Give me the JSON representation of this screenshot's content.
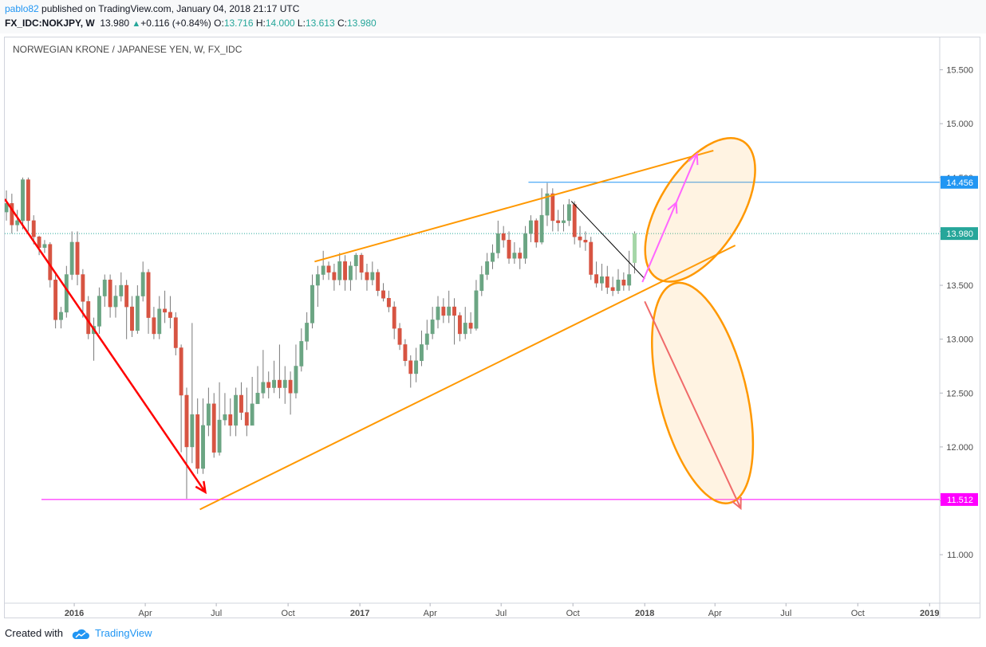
{
  "header": {
    "author": "pablo82",
    "published_text": " published on TradingView.com, January 04, 2018 21:17 UTC",
    "symbol": "FX_IDC:NOKJPY, W",
    "last": "13.980",
    "change": "+0.116 (+0.84%)",
    "o_label": "O:",
    "o_value": "13.716",
    "h_label": "H:",
    "h_value": "14.000",
    "l_label": "L:",
    "l_value": "13.613",
    "c_label": "C:",
    "c_value": "13.980"
  },
  "footer": {
    "created_with": "Created with",
    "brand": "TradingView"
  },
  "colors": {
    "up": "#26a69a",
    "down": "#ef5350",
    "wedge": "#ff9800",
    "arrow_down": "#ff0000",
    "arrow_bull": "#ff66ff",
    "arrow_bear": "#f06a6a",
    "level_low": "#ff00ff",
    "level_high": "#2196f3"
  },
  "chart_data": {
    "type": "candlestick",
    "title": "NORWEGIAN KRONE / JAPANESE YEN, W, FX_IDC",
    "y_ticks": [
      "11.000",
      "11.500",
      "12.000",
      "12.500",
      "13.000",
      "13.500",
      "14.000",
      "14.500",
      "15.000",
      "15.500"
    ],
    "ylim": [
      10.55,
      15.8
    ],
    "x_ticks": [
      "2016",
      "Apr",
      "Jul",
      "Oct",
      "2017",
      "Apr",
      "Jul",
      "Oct",
      "2018",
      "Apr",
      "Jul",
      "Oct",
      "2019"
    ],
    "x_tick_dates": [
      "2016-01-01",
      "2016-04-01",
      "2016-07-01",
      "2016-10-01",
      "2017-01-01",
      "2017-04-01",
      "2017-07-01",
      "2017-10-01",
      "2018-01-01",
      "2018-04-01",
      "2018-07-01",
      "2018-10-01",
      "2019-01-01"
    ],
    "xlim": [
      "2015-10-04",
      "2019-01-14"
    ],
    "price_labels": [
      {
        "value": "14.456",
        "color": "#2196f3"
      },
      {
        "value": "13.980",
        "color": "#26a69a"
      },
      {
        "value": "11.512",
        "color": "#ff00ff"
      }
    ],
    "horizontal_lines": [
      {
        "price": 14.456,
        "from": "2017-08-05",
        "color": "#2196f3"
      },
      {
        "price": 11.512,
        "from": "2015-11-20",
        "color": "#ff00ff"
      },
      {
        "price": 13.98,
        "from": "2015-10-04",
        "color": "#26a69a",
        "dotted": true
      }
    ],
    "candles": [
      [
        14.18,
        14.26,
        14.38,
        14.1
      ],
      [
        14.26,
        14.06,
        14.35,
        13.98
      ],
      [
        14.06,
        14.1,
        14.2,
        14.0
      ],
      [
        14.1,
        14.48,
        14.5,
        14.02
      ],
      [
        14.48,
        14.1,
        14.5,
        14.0
      ],
      [
        14.1,
        13.95,
        14.15,
        13.88
      ],
      [
        13.95,
        13.85,
        13.96,
        13.78
      ],
      [
        13.85,
        13.88,
        13.92,
        13.8
      ],
      [
        13.88,
        13.55,
        13.9,
        13.48
      ],
      [
        13.55,
        13.18,
        13.6,
        13.1
      ],
      [
        13.18,
        13.25,
        13.3,
        13.1
      ],
      [
        13.25,
        13.6,
        13.68,
        13.2
      ],
      [
        13.6,
        13.9,
        14.0,
        13.55
      ],
      [
        13.9,
        13.6,
        14.0,
        13.5
      ],
      [
        13.6,
        13.35,
        13.65,
        13.2
      ],
      [
        13.35,
        13.05,
        13.4,
        13.0
      ],
      [
        13.05,
        13.12,
        13.2,
        12.8
      ],
      [
        13.12,
        13.4,
        13.48,
        13.05
      ],
      [
        13.4,
        13.55,
        13.6,
        13.3
      ],
      [
        13.55,
        13.3,
        13.6,
        13.2
      ],
      [
        13.3,
        13.4,
        13.5,
        13.2
      ],
      [
        13.4,
        13.5,
        13.62,
        13.35
      ],
      [
        13.5,
        13.3,
        13.55,
        13.0
      ],
      [
        13.3,
        13.08,
        13.4,
        13.02
      ],
      [
        13.08,
        13.4,
        13.5,
        13.05
      ],
      [
        13.4,
        13.62,
        13.72,
        13.35
      ],
      [
        13.62,
        13.2,
        13.65,
        13.05
      ],
      [
        13.2,
        13.05,
        13.3,
        13.0
      ],
      [
        13.05,
        13.28,
        13.4,
        13.0
      ],
      [
        13.28,
        13.25,
        13.45,
        13.15
      ],
      [
        13.25,
        13.2,
        13.4,
        13.1
      ],
      [
        13.2,
        12.92,
        13.25,
        12.85
      ],
      [
        12.92,
        12.48,
        12.95,
        11.95
      ],
      [
        12.48,
        12.0,
        12.55,
        11.52
      ],
      [
        12.0,
        12.3,
        13.15,
        11.85
      ],
      [
        12.3,
        11.8,
        12.45,
        11.75
      ],
      [
        11.8,
        12.2,
        12.45,
        11.75
      ],
      [
        12.2,
        12.4,
        12.55,
        12.1
      ],
      [
        12.4,
        11.95,
        12.5,
        11.9
      ],
      [
        11.95,
        12.25,
        12.6,
        11.92
      ],
      [
        12.25,
        12.3,
        12.5,
        12.2
      ],
      [
        12.3,
        12.2,
        12.45,
        12.1
      ],
      [
        12.2,
        12.48,
        12.55,
        12.1
      ],
      [
        12.48,
        12.32,
        12.6,
        12.25
      ],
      [
        12.32,
        12.2,
        12.55,
        12.1
      ],
      [
        12.2,
        12.4,
        12.65,
        12.3
      ],
      [
        12.4,
        12.5,
        12.75,
        12.42
      ],
      [
        12.5,
        12.6,
        12.9,
        12.45
      ],
      [
        12.6,
        12.55,
        12.7,
        12.45
      ],
      [
        12.55,
        12.62,
        12.8,
        12.5
      ],
      [
        12.62,
        12.55,
        12.95,
        12.45
      ],
      [
        12.55,
        12.62,
        12.75,
        12.4
      ],
      [
        12.62,
        12.5,
        12.7,
        12.3
      ],
      [
        12.5,
        12.75,
        12.95,
        12.45
      ],
      [
        12.75,
        12.98,
        13.1,
        12.7
      ],
      [
        12.98,
        13.15,
        13.25,
        12.9
      ],
      [
        13.15,
        13.5,
        13.6,
        13.1
      ],
      [
        13.5,
        13.6,
        13.68,
        13.3
      ],
      [
        13.6,
        13.68,
        13.82,
        13.55
      ],
      [
        13.68,
        13.62,
        13.72,
        13.55
      ],
      [
        13.62,
        13.55,
        13.7,
        13.45
      ],
      [
        13.55,
        13.72,
        13.8,
        13.5
      ],
      [
        13.72,
        13.55,
        13.78,
        13.45
      ],
      [
        13.55,
        13.68,
        13.72,
        13.45
      ],
      [
        13.68,
        13.78,
        13.8,
        13.55
      ],
      [
        13.78,
        13.62,
        13.8,
        13.55
      ],
      [
        13.62,
        13.55,
        13.7,
        13.45
      ],
      [
        13.55,
        13.62,
        13.72,
        13.5
      ],
      [
        13.62,
        13.45,
        13.65,
        13.4
      ],
      [
        13.45,
        13.38,
        13.52,
        13.35
      ],
      [
        13.38,
        13.3,
        13.45,
        13.25
      ],
      [
        13.3,
        13.1,
        13.35,
        13.0
      ],
      [
        13.1,
        12.95,
        13.15,
        12.9
      ],
      [
        12.95,
        12.8,
        13.0,
        12.75
      ],
      [
        12.8,
        12.68,
        12.85,
        12.55
      ],
      [
        12.68,
        12.8,
        12.92,
        12.6
      ],
      [
        12.8,
        12.95,
        13.08,
        12.75
      ],
      [
        12.95,
        13.05,
        13.18,
        12.9
      ],
      [
        13.05,
        13.18,
        13.3,
        13.0
      ],
      [
        13.18,
        13.3,
        13.4,
        13.1
      ],
      [
        13.3,
        13.22,
        13.38,
        13.15
      ],
      [
        13.22,
        13.3,
        13.45,
        13.15
      ],
      [
        13.3,
        13.22,
        13.38,
        12.95
      ],
      [
        13.22,
        13.05,
        13.25,
        12.98
      ],
      [
        13.05,
        13.15,
        13.3,
        13.0
      ],
      [
        13.15,
        13.1,
        13.25,
        13.05
      ],
      [
        13.1,
        13.45,
        13.55,
        13.08
      ],
      [
        13.45,
        13.6,
        13.68,
        13.4
      ],
      [
        13.6,
        13.72,
        13.8,
        13.55
      ],
      [
        13.72,
        13.8,
        13.88,
        13.65
      ],
      [
        13.8,
        13.98,
        14.1,
        13.75
      ],
      [
        13.98,
        13.92,
        14.05,
        13.85
      ],
      [
        13.92,
        13.75,
        14.0,
        13.7
      ],
      [
        13.75,
        13.8,
        13.9,
        13.7
      ],
      [
        13.8,
        13.75,
        13.85,
        13.65
      ],
      [
        13.75,
        13.98,
        14.05,
        13.7
      ],
      [
        13.98,
        14.1,
        14.15,
        13.9
      ],
      [
        14.1,
        13.9,
        14.12,
        13.85
      ],
      [
        13.9,
        14.15,
        14.4,
        13.88
      ],
      [
        14.15,
        14.35,
        14.45,
        14.05
      ],
      [
        14.35,
        14.1,
        14.4,
        14.0
      ],
      [
        14.1,
        14.08,
        14.2,
        14.0
      ],
      [
        14.08,
        14.1,
        14.25,
        14.0
      ],
      [
        14.1,
        14.25,
        14.3,
        14.05
      ],
      [
        14.25,
        13.95,
        14.28,
        13.88
      ],
      [
        13.95,
        13.92,
        14.05,
        13.85
      ],
      [
        13.92,
        13.9,
        14.0,
        13.82
      ],
      [
        13.9,
        13.6,
        13.95,
        13.55
      ],
      [
        13.6,
        13.52,
        13.72,
        13.48
      ],
      [
        13.52,
        13.58,
        13.7,
        13.45
      ],
      [
        13.58,
        13.48,
        13.68,
        13.42
      ],
      [
        13.48,
        13.45,
        13.58,
        13.4
      ],
      [
        13.45,
        13.55,
        13.65,
        13.42
      ],
      [
        13.55,
        13.5,
        13.62,
        13.45
      ],
      [
        13.5,
        13.6,
        13.82,
        13.45
      ],
      [
        13.71,
        13.98,
        14.0,
        13.61
      ]
    ],
    "trendlines": [
      {
        "name": "wedge-upper",
        "p1": [
          "2016-11-04",
          13.72
        ],
        "p2": [
          "2018-03-30",
          14.75
        ]
      },
      {
        "name": "wedge-lower",
        "p1": [
          "2016-06-10",
          11.42
        ],
        "p2": [
          "2018-04-27",
          13.87
        ]
      },
      {
        "name": "bear-line",
        "p1": [
          "2015-10-04",
          14.3
        ],
        "p2": [
          "2016-06-17",
          11.58
        ]
      },
      {
        "name": "short-fall",
        "p1": [
          "2017-09-29",
          14.28
        ],
        "p2": [
          "2018-01-01",
          13.56
        ]
      }
    ],
    "arrows": [
      {
        "name": "bull-arrow",
        "from": [
          "2017-12-29",
          13.53
        ],
        "to": [
          "2018-03-09",
          14.72
        ],
        "color": "#ff66ff"
      },
      {
        "name": "bear-arrow",
        "from": [
          "2018-01-01",
          13.35
        ],
        "to": [
          "2018-05-04",
          11.43
        ],
        "color": "#f06a6a"
      }
    ],
    "ellipses": [
      {
        "name": "upper-ellipse",
        "center": [
          "2018-03-13",
          14.2
        ],
        "rx": "2018-05-04",
        "ry": 14.95,
        "angle": 32
      },
      {
        "name": "lower-ellipse",
        "center": [
          "2018-03-16",
          12.5
        ],
        "rx": "2018-05-11",
        "ry": 13.55,
        "angle": -14
      }
    ]
  }
}
